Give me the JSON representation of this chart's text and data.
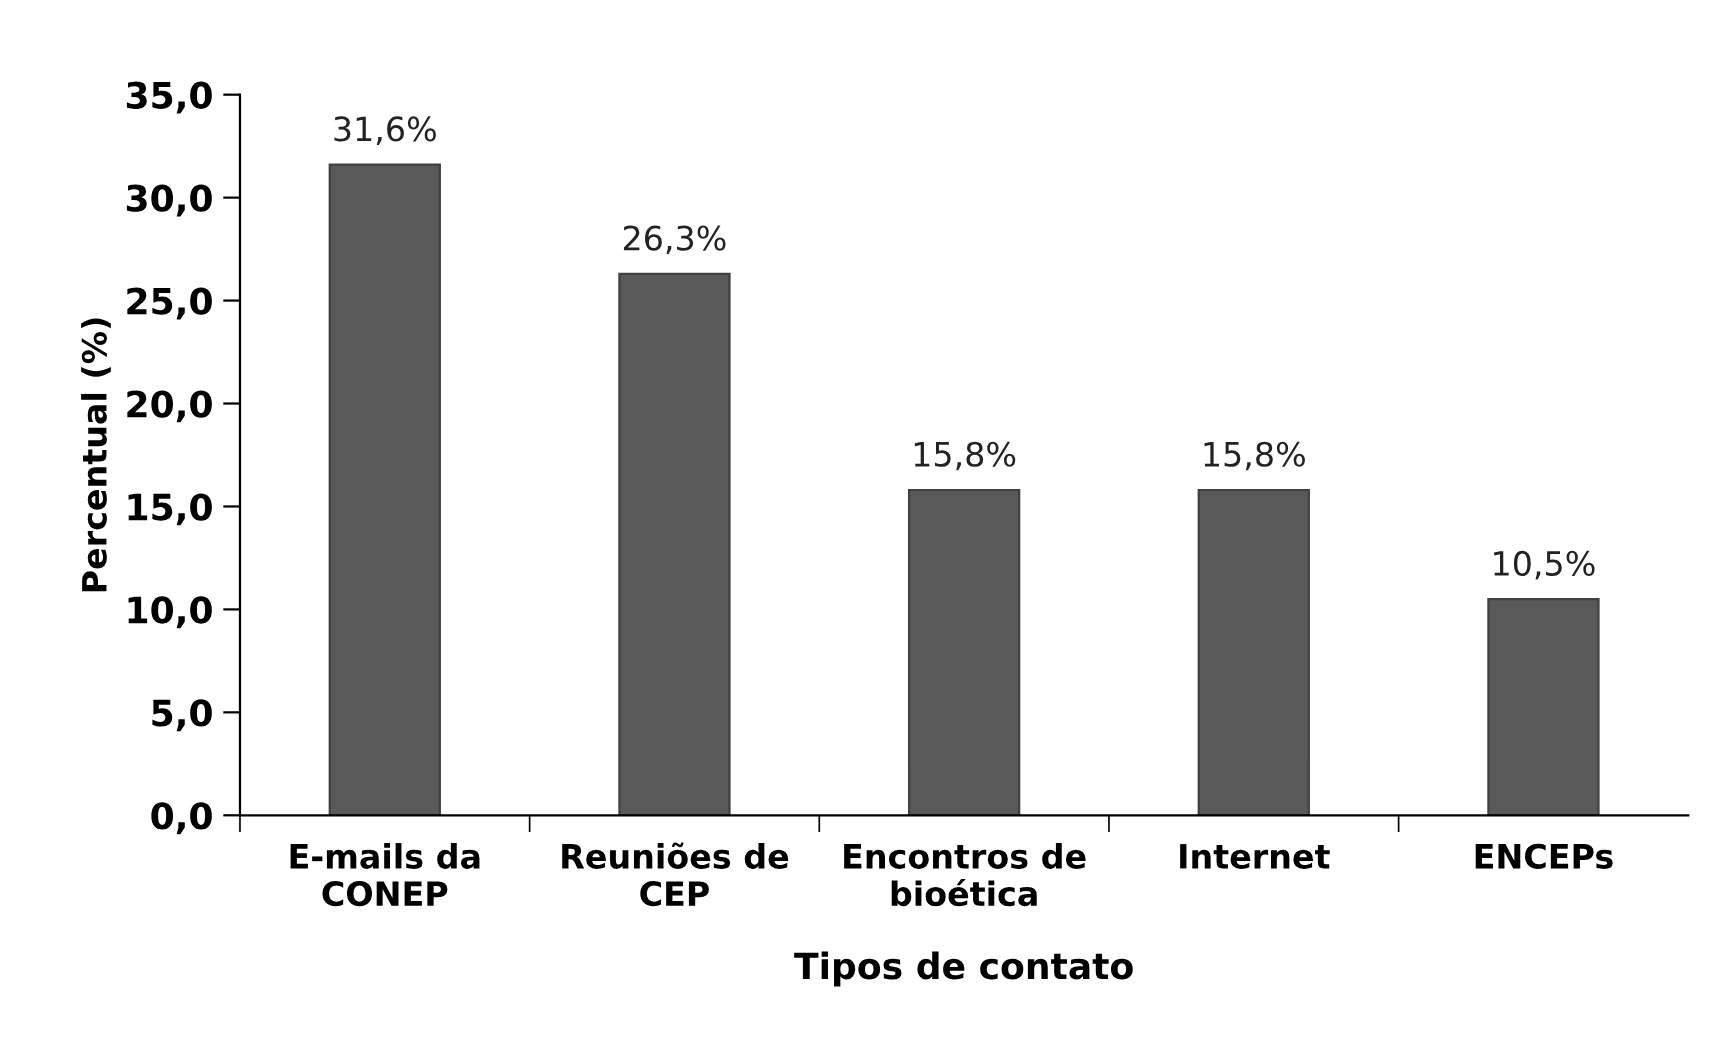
{
  "chart_data": {
    "type": "bar",
    "xlabel": "Tipos de contato",
    "ylabel": "Percentual (%)",
    "categories": [
      "E-mails da\nCONEP",
      "Reuniões de\nCEP",
      "Encontros de\nbioética",
      "Internet",
      "ENCEPs"
    ],
    "values": [
      31.6,
      26.3,
      15.8,
      15.8,
      10.5
    ],
    "value_labels": [
      "31,6%",
      "26,3%",
      "15,8%",
      "15,8%",
      "10,5%"
    ],
    "color": "#595959",
    "ylim": [
      0,
      35
    ],
    "yticks": [
      {
        "value": 0,
        "label": "0,0"
      },
      {
        "value": 5,
        "label": "5,0"
      },
      {
        "value": 10,
        "label": "10,0"
      },
      {
        "value": 15,
        "label": "15,0"
      },
      {
        "value": 20,
        "label": "20,0"
      },
      {
        "value": 25,
        "label": "25,0"
      },
      {
        "value": 30,
        "label": "30,0"
      },
      {
        "value": 35,
        "label": "35,0"
      }
    ],
    "grid": false,
    "legend": false
  }
}
